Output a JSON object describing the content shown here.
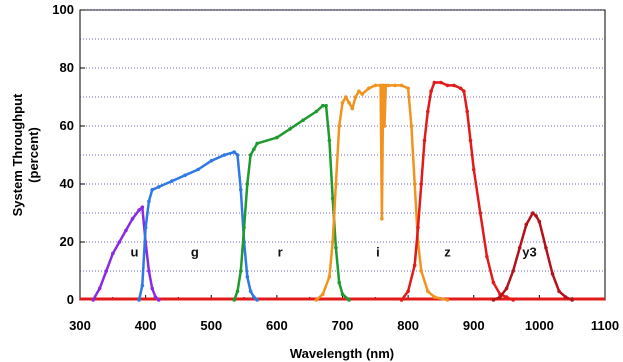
{
  "chart_data": {
    "type": "line",
    "title": "",
    "xlabel": "Wavelength (nm)",
    "ylabel_line1": "System Throughput",
    "ylabel_line2": "(percent)",
    "xlim": [
      300,
      1100
    ],
    "ylim": [
      0,
      100
    ],
    "x_ticks": [
      300,
      400,
      500,
      600,
      700,
      800,
      900,
      1000,
      1100
    ],
    "y_ticks": [
      0,
      20,
      40,
      60,
      80,
      100
    ],
    "grid": "horizontal dotted, every 10 percent",
    "series": [
      {
        "name": "u",
        "color": "#8a2be2",
        "label_at": [
          383,
          15
        ],
        "x": [
          320,
          330,
          340,
          350,
          360,
          370,
          380,
          390,
          395,
          400,
          405,
          410,
          415,
          420
        ],
        "y": [
          0,
          4,
          10,
          16,
          20,
          24,
          28,
          31,
          32,
          20,
          10,
          4,
          1,
          0
        ]
      },
      {
        "name": "g",
        "color": "#2f79e6",
        "label_at": [
          475,
          15
        ],
        "x": [
          390,
          395,
          400,
          405,
          410,
          420,
          440,
          460,
          480,
          500,
          520,
          535,
          540,
          545,
          550,
          555,
          560,
          565,
          570
        ],
        "y": [
          0,
          5,
          25,
          34,
          38,
          39,
          41,
          43,
          45,
          48,
          50,
          51,
          50,
          38,
          20,
          8,
          3,
          1,
          0
        ]
      },
      {
        "name": "r",
        "color": "#1f9a2f",
        "label_at": [
          605,
          15
        ],
        "x": [
          535,
          540,
          545,
          550,
          555,
          560,
          565,
          570,
          600,
          620,
          640,
          660,
          670,
          675,
          680,
          685,
          690,
          695,
          700,
          710
        ],
        "y": [
          0,
          3,
          10,
          25,
          40,
          50,
          52,
          54,
          56,
          59,
          62,
          65,
          67,
          67,
          55,
          35,
          18,
          6,
          2,
          0
        ]
      },
      {
        "name": "i",
        "color": "#f0931f",
        "label_at": [
          754,
          15
        ],
        "x": [
          660,
          670,
          680,
          685,
          690,
          695,
          700,
          705,
          710,
          715,
          720,
          725,
          730,
          740,
          750,
          758,
          760,
          762,
          764,
          766,
          770,
          780,
          790,
          800,
          805,
          810,
          815,
          820,
          830,
          840,
          860
        ],
        "y": [
          0,
          2,
          8,
          20,
          40,
          60,
          68,
          70,
          68,
          66,
          70,
          72,
          71,
          73,
          74,
          74,
          28,
          74,
          60,
          74,
          74,
          74,
          74,
          73,
          60,
          40,
          20,
          10,
          3,
          1,
          0
        ]
      },
      {
        "name": "z",
        "color": "#e31a1a",
        "label_at": [
          860,
          15
        ],
        "x": [
          790,
          800,
          810,
          815,
          820,
          825,
          830,
          835,
          840,
          850,
          860,
          870,
          880,
          885,
          890,
          895,
          900,
          910,
          920,
          930,
          940,
          950,
          960
        ],
        "y": [
          0,
          3,
          12,
          25,
          40,
          55,
          65,
          72,
          75,
          75,
          74,
          74,
          73,
          72,
          65,
          55,
          45,
          30,
          15,
          6,
          2,
          1,
          0
        ]
      },
      {
        "name": "y3",
        "color": "#b3121a",
        "label_at": [
          985,
          15
        ],
        "x": [
          930,
          940,
          950,
          960,
          970,
          980,
          990,
          995,
          1000,
          1010,
          1020,
          1030,
          1040,
          1050
        ],
        "y": [
          0,
          1,
          4,
          10,
          18,
          26,
          30,
          29,
          27,
          18,
          9,
          3,
          1,
          0
        ]
      }
    ],
    "baseline": {
      "color": "#e31a1a",
      "y": 0
    }
  }
}
